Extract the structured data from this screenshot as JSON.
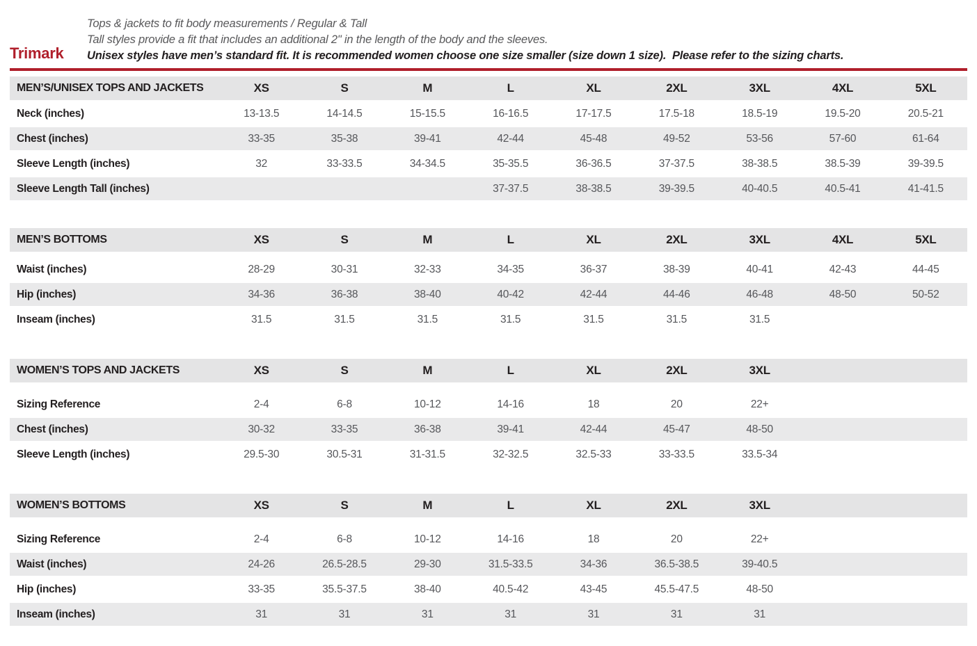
{
  "header": {
    "brand": "Trimark",
    "accent_color": "#b01f2b",
    "line1": "Tops & jackets to fit body measurements / Regular & Tall",
    "line2": "Tall styles provide a fit that includes an additional 2\" in the length of the body and the sleeves.",
    "line3": "Unisex styles have men’s standard fit. It is recommended women choose one size smaller (size down 1 size).  Please refer to the sizing charts."
  },
  "tables": [
    {
      "title": "MEN’S/UNISEX TOPS AND JACKETS",
      "sizes": [
        "XS",
        "S",
        "M",
        "L",
        "XL",
        "2XL",
        "3XL",
        "4XL",
        "5XL"
      ],
      "rows": [
        {
          "label": "Neck (inches)",
          "values": [
            "13-13.5",
            "14-14.5",
            "15-15.5",
            "16-16.5",
            "17-17.5",
            "17.5-18",
            "18.5-19",
            "19.5-20",
            "20.5-21"
          ]
        },
        {
          "label": "Chest (inches)",
          "values": [
            "33-35",
            "35-38",
            "39-41",
            "42-44",
            "45-48",
            "49-52",
            "53-56",
            "57-60",
            "61-64"
          ]
        },
        {
          "label": "Sleeve Length (inches)",
          "values": [
            "32",
            "33-33.5",
            "34-34.5",
            "35-35.5",
            "36-36.5",
            "37-37.5",
            "38-38.5",
            "38.5-39",
            "39-39.5"
          ]
        },
        {
          "label": "Sleeve Length Tall (inches)",
          "values": [
            "",
            "",
            "",
            "37-37.5",
            "38-38.5",
            "39-39.5",
            "40-40.5",
            "40.5-41",
            "41-41.5"
          ]
        }
      ]
    },
    {
      "title": "MEN’S BOTTOMS",
      "sizes": [
        "XS",
        "S",
        "M",
        "L",
        "XL",
        "2XL",
        "3XL",
        "4XL",
        "5XL"
      ],
      "rows": [
        {
          "label": "Waist (inches)",
          "values": [
            "28-29",
            "30-31",
            "32-33",
            "34-35",
            "36-37",
            "38-39",
            "40-41",
            "42-43",
            "44-45"
          ]
        },
        {
          "label": "Hip (inches)",
          "values": [
            "34-36",
            "36-38",
            "38-40",
            "40-42",
            "42-44",
            "44-46",
            "46-48",
            "48-50",
            "50-52"
          ]
        },
        {
          "label": "Inseam (inches)",
          "values": [
            "31.5",
            "31.5",
            "31.5",
            "31.5",
            "31.5",
            "31.5",
            "31.5",
            "",
            ""
          ]
        }
      ]
    },
    {
      "title": "WOMEN’S TOPS AND JACKETS",
      "sizes": [
        "XS",
        "S",
        "M",
        "L",
        "XL",
        "2XL",
        "3XL"
      ],
      "rows": [
        {
          "label": "Sizing Reference",
          "values": [
            "2-4",
            "6-8",
            "10-12",
            "14-16",
            "18",
            "20",
            "22+"
          ]
        },
        {
          "label": "Chest (inches)",
          "values": [
            "30-32",
            "33-35",
            "36-38",
            "39-41",
            "42-44",
            "45-47",
            "48-50"
          ]
        },
        {
          "label": "Sleeve Length (inches)",
          "values": [
            "29.5-30",
            "30.5-31",
            "31-31.5",
            "32-32.5",
            "32.5-33",
            "33-33.5",
            "33.5-34"
          ]
        }
      ]
    },
    {
      "title": "WOMEN’S BOTTOMS",
      "sizes": [
        "XS",
        "S",
        "M",
        "L",
        "XL",
        "2XL",
        "3XL"
      ],
      "rows": [
        {
          "label": "Sizing Reference",
          "values": [
            "2-4",
            "6-8",
            "10-12",
            "14-16",
            "18",
            "20",
            "22+"
          ]
        },
        {
          "label": "Waist (inches)",
          "values": [
            "24-26",
            "26.5-28.5",
            "29-30",
            "31.5-33.5",
            "34-36",
            "36.5-38.5",
            "39-40.5"
          ]
        },
        {
          "label": "Hip (inches)",
          "values": [
            "33-35",
            "35.5-37.5",
            "38-40",
            "40.5-42",
            "43-45",
            "45.5-47.5",
            "48-50"
          ]
        },
        {
          "label": "Inseam (inches)",
          "values": [
            "31",
            "31",
            "31",
            "31",
            "31",
            "31",
            "31"
          ]
        }
      ]
    }
  ]
}
